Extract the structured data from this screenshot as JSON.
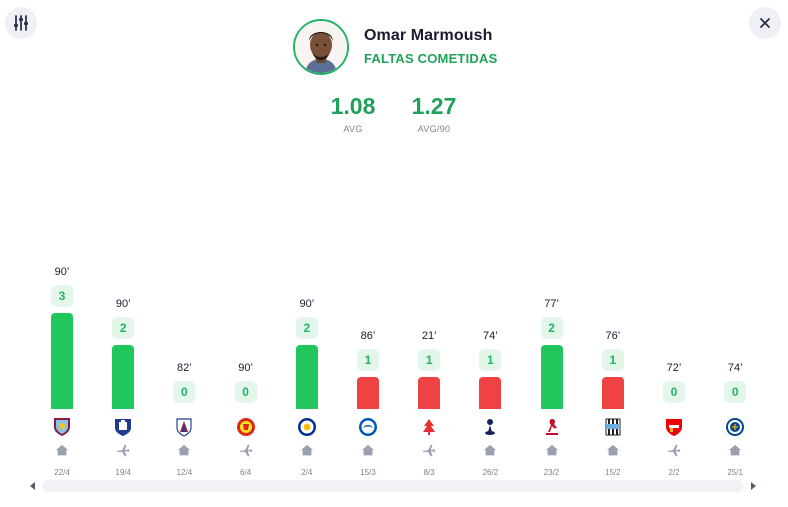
{
  "player": {
    "name": "Omar Marmoush",
    "stat_title": "FALTAS COMETIDAS"
  },
  "summary": {
    "avg_value": "1.08",
    "avg_label": "AVG",
    "avg90_value": "1.27",
    "avg90_label": "AVG/90"
  },
  "colors": {
    "accent": "#1fa259",
    "bar_above": "#21c65d",
    "bar_below": "#ef4343",
    "badge_bg": "#e2f6ea"
  },
  "chart_data": {
    "type": "bar",
    "categories": [
      "22/4",
      "19/4",
      "12/4",
      "6/4",
      "2/4",
      "15/3",
      "8/3",
      "26/2",
      "23/2",
      "15/2",
      "2/2",
      "25/1"
    ],
    "values": [
      3,
      2,
      0,
      0,
      2,
      1,
      1,
      1,
      2,
      1,
      0,
      0
    ],
    "minutes": [
      "90’",
      "90’",
      "82’",
      "90’",
      "90’",
      "86’",
      "21’",
      "74’",
      "77’",
      "76’",
      "72’",
      "74’"
    ],
    "opponents": [
      "Aston Villa",
      "Everton",
      "Crystal Palace",
      "Manchester United",
      "Leicester City",
      "Brighton",
      "Nottingham Forest",
      "Tottenham",
      "Liverpool",
      "Newcastle",
      "Arsenal",
      "Chelsea"
    ],
    "venue": [
      "home",
      "away",
      "home",
      "away",
      "home",
      "home",
      "away",
      "home",
      "home",
      "home",
      "away",
      "home"
    ],
    "bar_color": [
      "green",
      "green",
      "none",
      "none",
      "green",
      "red",
      "red",
      "red",
      "green",
      "red",
      "none",
      "none"
    ]
  },
  "icons": {
    "filter": "sliders-icon",
    "close": "close-icon",
    "home": "home-icon",
    "away": "plane-icon"
  }
}
